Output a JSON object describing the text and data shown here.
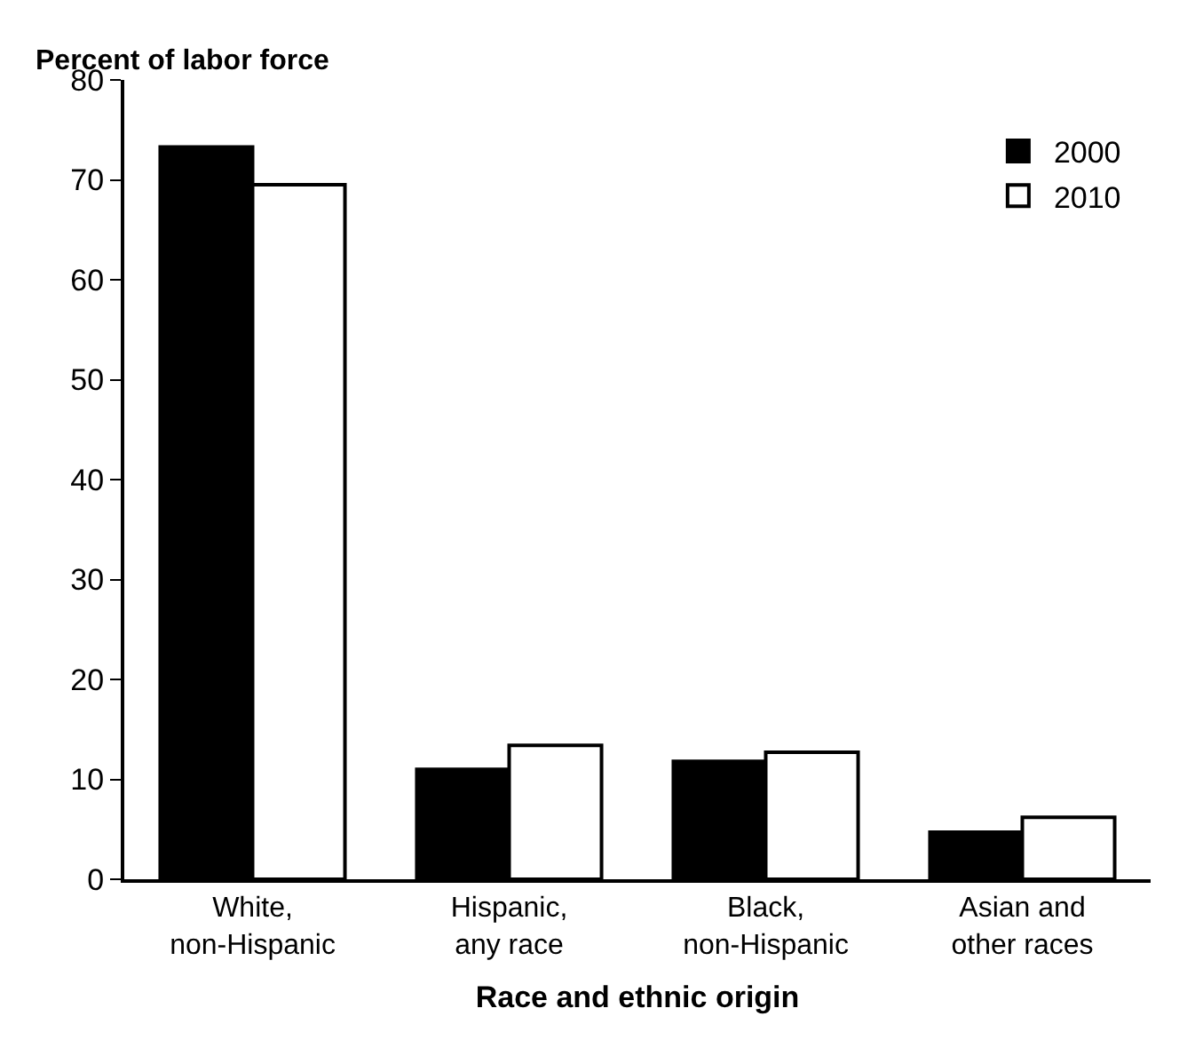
{
  "chart_data": {
    "type": "bar",
    "ylabel": "Percent of labor force",
    "xlabel": "Race and ethnic origin",
    "categories": [
      "White,\nnon-Hispanic",
      "Hispanic,\nany race",
      "Black,\nnon-Hispanic",
      "Asian and\nother races"
    ],
    "series": [
      {
        "name": "2000",
        "color": "#000000",
        "values": [
          73.3,
          11.0,
          11.8,
          4.7
        ]
      },
      {
        "name": "2010",
        "color": "#ffffff",
        "values": [
          69.5,
          13.4,
          12.7,
          6.2
        ]
      }
    ],
    "ylim": [
      0,
      80
    ],
    "yticks": [
      0,
      10,
      20,
      30,
      40,
      50,
      60,
      70,
      80
    ],
    "legend": "top right"
  }
}
